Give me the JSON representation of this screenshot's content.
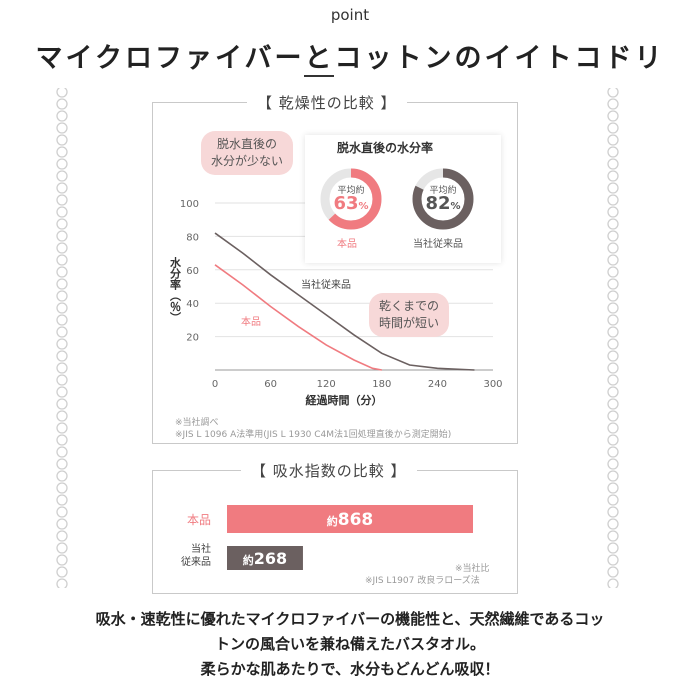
{
  "header": {
    "point": "point",
    "title_part1": "マイクロファイバー",
    "title_part2": "と",
    "title_part3": "コットンのイイトコドリ"
  },
  "drying": {
    "title": "【 乾燥性の比較 】",
    "bubble_left": [
      "脱水直後の",
      "水分が少ない"
    ],
    "bubble_right": [
      "乾くまでの",
      "時間が短い"
    ],
    "notes": [
      "※当社調べ",
      "※JIS L 1096 A法準用(JIS L 1930 C4M法1回処理直後から測定開始)"
    ]
  },
  "moisture_box": {
    "title": "脱水直後の水分率",
    "items": [
      {
        "top_label": "平均約",
        "value": 63,
        "unit": "%",
        "name": "本品",
        "color": "#f07b80"
      },
      {
        "top_label": "平均約",
        "value": 82,
        "unit": "%",
        "name": "当社従来品",
        "color": "#6b6060"
      }
    ]
  },
  "absorb": {
    "title": "【 吸水指数の比較 】",
    "notes": [
      "※当社比",
      "※JIS L1907 改良ラローズ法"
    ]
  },
  "footer": [
    "吸水・速乾性に優れたマイクロファイバーの機能性と、天然繊維であるコッ",
    "トンの風合いを兼ね備えたバスタオル。",
    "柔らかな肌あたりで、水分もどんどん吸収！"
  ],
  "colors": {
    "product": "#f07b80",
    "conventional": "#6b6060"
  },
  "chart_data": [
    {
      "type": "line",
      "title": "乾燥性の比較",
      "xlabel": "経過時間（分）",
      "ylabel": "水分率（％）",
      "xlim": [
        0,
        300
      ],
      "ylim": [
        0,
        100
      ],
      "x_ticks": [
        "0",
        "60",
        "120",
        "180",
        "240",
        "300"
      ],
      "y_ticks": [
        "100",
        "80",
        "60",
        "40",
        "20"
      ],
      "series": [
        {
          "name": "本品",
          "color": "#f07b80",
          "x": [
            0,
            30,
            60,
            90,
            120,
            150,
            170,
            180
          ],
          "y": [
            63,
            51,
            38,
            26,
            15,
            6,
            1,
            0
          ]
        },
        {
          "name": "当社従来品",
          "color": "#6b6060",
          "x": [
            0,
            30,
            60,
            90,
            120,
            150,
            180,
            210,
            240,
            280
          ],
          "y": [
            82,
            70,
            57,
            45,
            33,
            21,
            10,
            3,
            1,
            0
          ]
        }
      ]
    },
    {
      "type": "bar",
      "title": "吸水指数の比較",
      "categories": [
        "本品",
        "当社従来品"
      ],
      "category_display": [
        [
          "本品"
        ],
        [
          "当社",
          "従来品"
        ]
      ],
      "value_prefix": "約",
      "values": [
        868,
        268
      ],
      "colors": [
        "#f07b80",
        "#6b6060"
      ]
    }
  ]
}
